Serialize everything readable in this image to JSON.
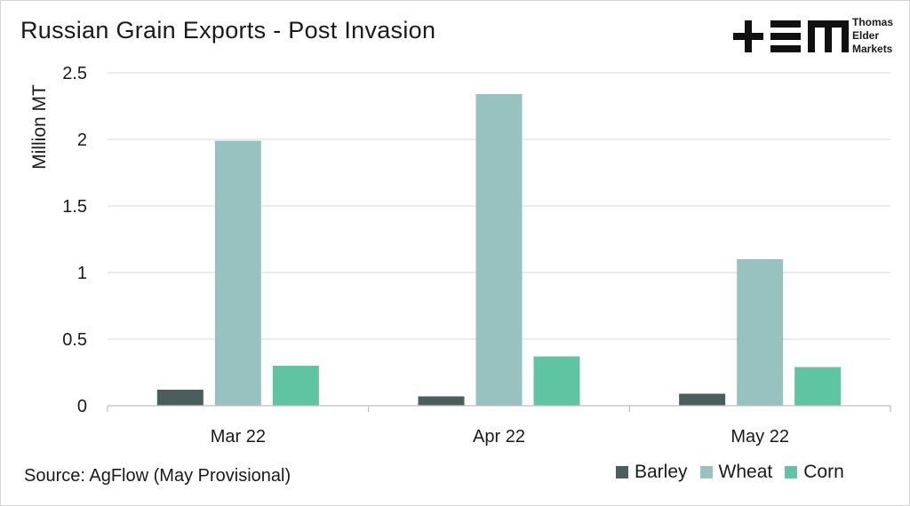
{
  "title": "Russian Grain Exports - Post Invasion",
  "source": "Source: AgFlow (May Provisional)",
  "logo": {
    "mark": "+EM",
    "lines": [
      "Thomas",
      "Elder",
      "Markets"
    ]
  },
  "colors": {
    "Barley": "#4b5e5e",
    "Wheat": "#98c2c0",
    "Corn": "#5fc4a2"
  },
  "chart_data": {
    "type": "bar",
    "title": "Russian Grain Exports - Post Invasion",
    "xlabel": "",
    "ylabel": "Million MT",
    "categories": [
      "Mar 22",
      "Apr 22",
      "May 22"
    ],
    "series": [
      {
        "name": "Barley",
        "values": [
          0.12,
          0.07,
          0.09
        ]
      },
      {
        "name": "Wheat",
        "values": [
          1.99,
          2.34,
          1.1
        ]
      },
      {
        "name": "Corn",
        "values": [
          0.3,
          0.37,
          0.29
        ]
      }
    ],
    "ylim": [
      0,
      2.5
    ],
    "yticks": [
      "0",
      "0.5",
      "1",
      "1.5",
      "2",
      "2.5"
    ],
    "grid": true,
    "legend": "bottom-right"
  }
}
